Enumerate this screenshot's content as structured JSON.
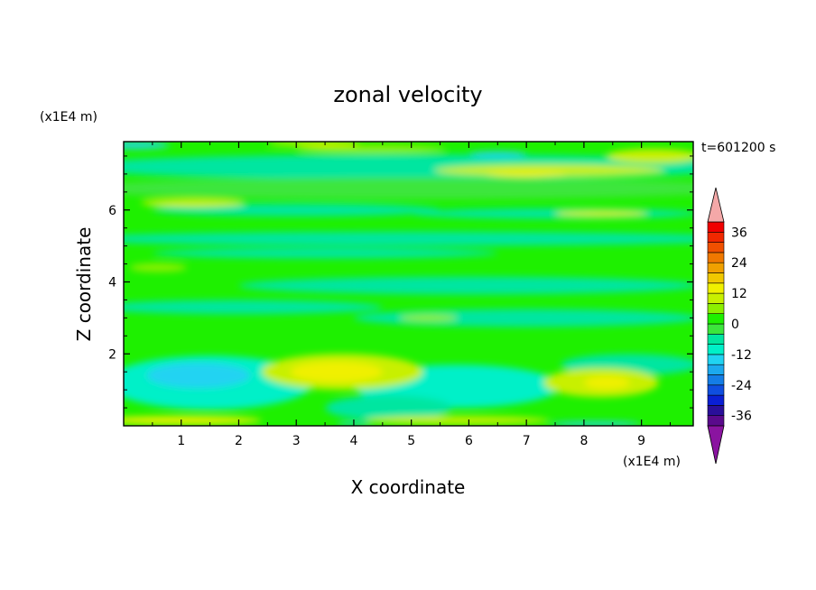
{
  "chart_data": {
    "type": "heatmap",
    "title": "zonal velocity",
    "xlabel": "X coordinate",
    "ylabel": "Z coordinate",
    "x_unit": "(x1E4 m)",
    "y_unit": "(x1E4 m)",
    "time_label": "t=601200 s",
    "xlim": [
      0,
      9.9
    ],
    "ylim": [
      0,
      7.9
    ],
    "xticks": [
      1,
      2,
      3,
      4,
      5,
      6,
      7,
      8,
      9
    ],
    "yticks": [
      2,
      4,
      6
    ],
    "colorbar": {
      "levels": [
        -40,
        -36,
        -32,
        -28,
        -24,
        -20,
        -16,
        -12,
        -8,
        -4,
        0,
        4,
        8,
        12,
        16,
        20,
        24,
        28,
        32,
        36,
        40
      ],
      "labels": [
        "36",
        "24",
        "12",
        "0",
        "-12",
        "-24",
        "-36"
      ],
      "label_values": [
        36,
        24,
        12,
        0,
        -12,
        -24,
        -36
      ],
      "colors": [
        "#5a0a8c",
        "#2a0f9a",
        "#0a1fd4",
        "#0f4ee0",
        "#147de6",
        "#1ca9ee",
        "#20d3f2",
        "#00f0c8",
        "#00e6a0",
        "#3ce63c",
        "#1ef000",
        "#8cf000",
        "#c8f000",
        "#f0f000",
        "#f0c800",
        "#f0a000",
        "#f07800",
        "#f05000",
        "#f02800",
        "#f00000"
      ],
      "over_color": "#f4a8a8",
      "under_color": "#8a14a0"
    },
    "grid": false
  }
}
